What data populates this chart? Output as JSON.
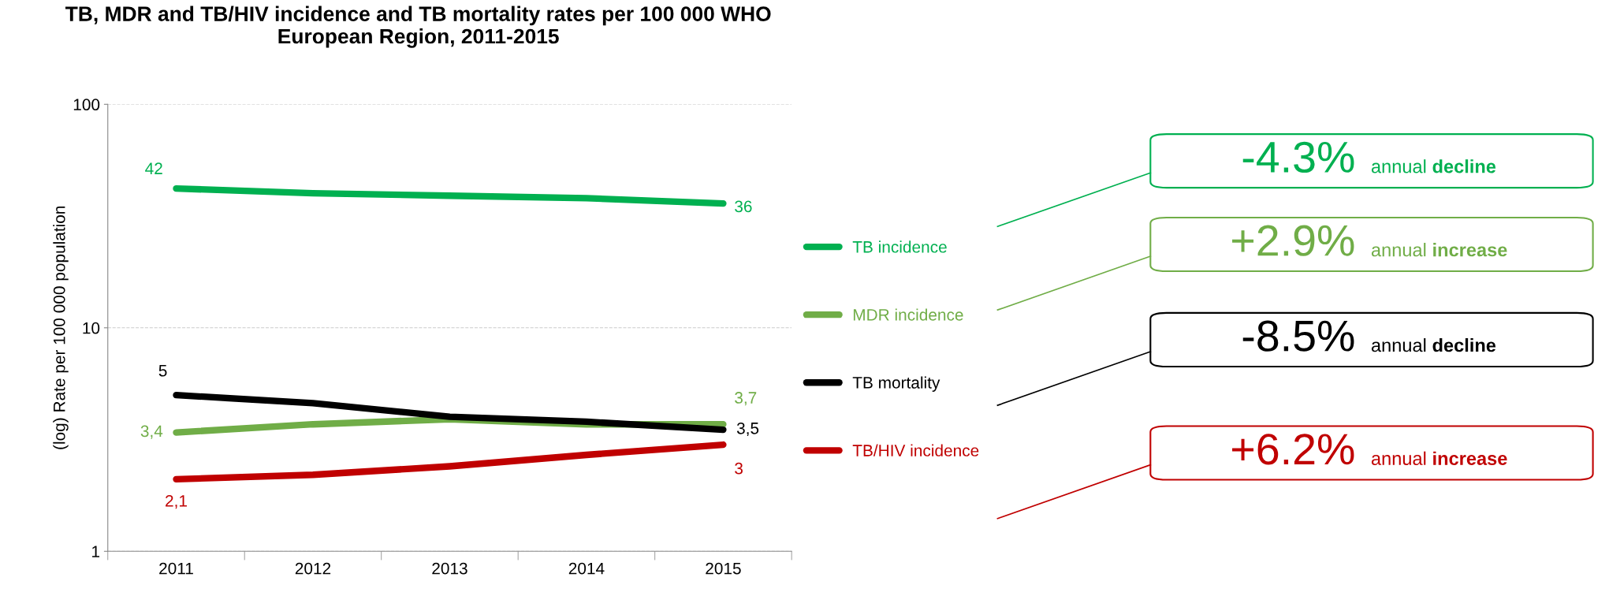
{
  "chart_data": {
    "type": "line",
    "title": "TB, MDR and TB/HIV incidence and TB mortality rates per 100 000 WHO\nEuropean Region, 2011-2015",
    "ylabel": "(log) Rate per 100 000 population",
    "categories": [
      "2011",
      "2012",
      "2013",
      "2014",
      "2015"
    ],
    "series": [
      {
        "name": "TB incidence",
        "color": "#00b050",
        "values": [
          42,
          40,
          39,
          38,
          36
        ],
        "value_labels": [
          "42",
          null,
          null,
          null,
          "36"
        ]
      },
      {
        "name": "MDR incidence",
        "color": "#70ad47",
        "values": [
          3.4,
          3.7,
          3.9,
          3.7,
          3.7
        ],
        "value_labels": [
          "3,4",
          null,
          null,
          null,
          "3,7"
        ]
      },
      {
        "name": "TB mortality",
        "color": "#000000",
        "values": [
          5,
          4.6,
          4.0,
          3.8,
          3.5
        ],
        "value_labels": [
          "5",
          null,
          null,
          null,
          "3,5"
        ]
      },
      {
        "name": "TB/HIV incidence",
        "color": "#c00000",
        "values": [
          2.1,
          2.2,
          2.4,
          2.7,
          3
        ],
        "value_labels": [
          "2,1",
          null,
          null,
          null,
          "3"
        ]
      }
    ],
    "log": "y",
    "ylim": [
      1,
      100
    ],
    "yticks": [
      1,
      10,
      100
    ],
    "grid": "y",
    "legend": "right",
    "marker": "none",
    "line_style": "solid",
    "annotations": [
      "-4.3% annual decline",
      "+2.9% annual increase",
      "-8.5% annual decline",
      "+6.2% annual increase"
    ]
  }
}
